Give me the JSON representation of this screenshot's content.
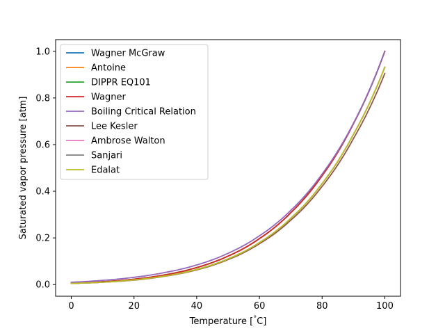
{
  "chart_data": {
    "type": "line",
    "title": "",
    "xlabel": "Temperature [$^\\circ$C]",
    "xlabel_main": "Temperature [",
    "xlabel_sup": "°",
    "xlabel_tail": "C]",
    "ylabel": "Saturated vapor pressure [atm]",
    "xlim": [
      -5,
      105
    ],
    "ylim": [
      -0.05,
      1.05
    ],
    "xticks": [
      0,
      20,
      40,
      60,
      80,
      100
    ],
    "yticks": [
      0.0,
      0.2,
      0.4,
      0.6,
      0.8,
      1.0
    ],
    "xtick_labels": [
      "0",
      "20",
      "40",
      "60",
      "80",
      "100"
    ],
    "ytick_labels": [
      "0.0",
      "0.2",
      "0.4",
      "0.6",
      "0.8",
      "1.0"
    ],
    "grid": false,
    "legend_position": "top-left",
    "x": [
      0,
      10,
      20,
      30,
      40,
      50,
      60,
      70,
      80,
      90,
      100
    ],
    "series": [
      {
        "name": "Wagner McGraw",
        "color": "#1f77b4",
        "values": [
          0.006,
          0.012,
          0.023,
          0.042,
          0.073,
          0.122,
          0.197,
          0.308,
          0.467,
          0.69,
          1.0
        ]
      },
      {
        "name": "Antoine",
        "color": "#ff7f0e",
        "values": [
          0.006,
          0.012,
          0.023,
          0.042,
          0.073,
          0.122,
          0.197,
          0.308,
          0.467,
          0.69,
          1.0
        ]
      },
      {
        "name": "DIPPR EQ101",
        "color": "#2ca02c",
        "values": [
          0.006,
          0.012,
          0.023,
          0.042,
          0.073,
          0.122,
          0.197,
          0.308,
          0.467,
          0.69,
          1.0
        ]
      },
      {
        "name": "Wagner",
        "color": "#d62728",
        "values": [
          0.006,
          0.012,
          0.023,
          0.042,
          0.073,
          0.122,
          0.197,
          0.308,
          0.467,
          0.69,
          1.0
        ]
      },
      {
        "name": "Boiling Critical Relation",
        "color": "#9467bd",
        "values": [
          0.01,
          0.018,
          0.031,
          0.052,
          0.084,
          0.134,
          0.209,
          0.318,
          0.474,
          0.692,
          1.0
        ]
      },
      {
        "name": "Lee Kesler",
        "color": "#8c564b",
        "values": [
          0.005,
          0.01,
          0.019,
          0.036,
          0.063,
          0.107,
          0.175,
          0.276,
          0.421,
          0.626,
          0.905
        ]
      },
      {
        "name": "Ambrose Walton",
        "color": "#e377c2",
        "values": [
          0.005,
          0.01,
          0.02,
          0.037,
          0.065,
          0.11,
          0.18,
          0.284,
          0.433,
          0.644,
          0.932
        ]
      },
      {
        "name": "Sanjari",
        "color": "#7f7f7f",
        "values": [
          0.005,
          0.01,
          0.02,
          0.037,
          0.065,
          0.11,
          0.18,
          0.284,
          0.433,
          0.644,
          0.932
        ]
      },
      {
        "name": "Edalat",
        "color": "#bcbd22",
        "values": [
          0.005,
          0.01,
          0.02,
          0.037,
          0.065,
          0.11,
          0.18,
          0.284,
          0.433,
          0.644,
          0.932
        ]
      }
    ]
  }
}
